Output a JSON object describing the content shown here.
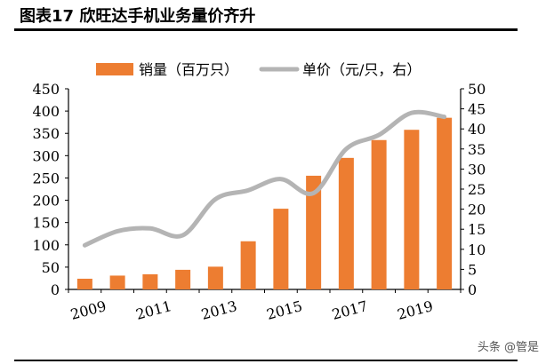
{
  "header": {
    "title": "图表17   欣旺达手机业务量价齐升"
  },
  "watermark": "头条 @管是",
  "chart_data": {
    "type": "bar+line",
    "categories": [
      "2009",
      "2010",
      "2011",
      "2012",
      "2013",
      "2014",
      "2015",
      "2016",
      "2017",
      "2018",
      "2019",
      "2020"
    ],
    "x_tick_labels": [
      "2009",
      "2011",
      "2013",
      "2015",
      "2017",
      "2019"
    ],
    "series": [
      {
        "name": "销量（百万只）",
        "type": "bar",
        "axis": "left",
        "color": "#ED7D31",
        "values": [
          24,
          31,
          34,
          44,
          51,
          108,
          181,
          255,
          295,
          335,
          358,
          385
        ]
      },
      {
        "name": "单价（元/只，右）",
        "type": "line",
        "axis": "right",
        "color": "#B4B4B4",
        "values": [
          11,
          14.5,
          15.2,
          13.5,
          22.5,
          24.7,
          27.5,
          24,
          35,
          38.5,
          44,
          43
        ]
      }
    ],
    "ylim_left": [
      0,
      450
    ],
    "yticks_left": [
      0,
      50,
      100,
      150,
      200,
      250,
      300,
      350,
      400,
      450
    ],
    "ylim_right": [
      0,
      50
    ],
    "yticks_right": [
      0,
      5,
      10,
      15,
      20,
      25,
      30,
      35,
      40,
      45,
      50
    ],
    "legend": "top",
    "grid": false
  }
}
